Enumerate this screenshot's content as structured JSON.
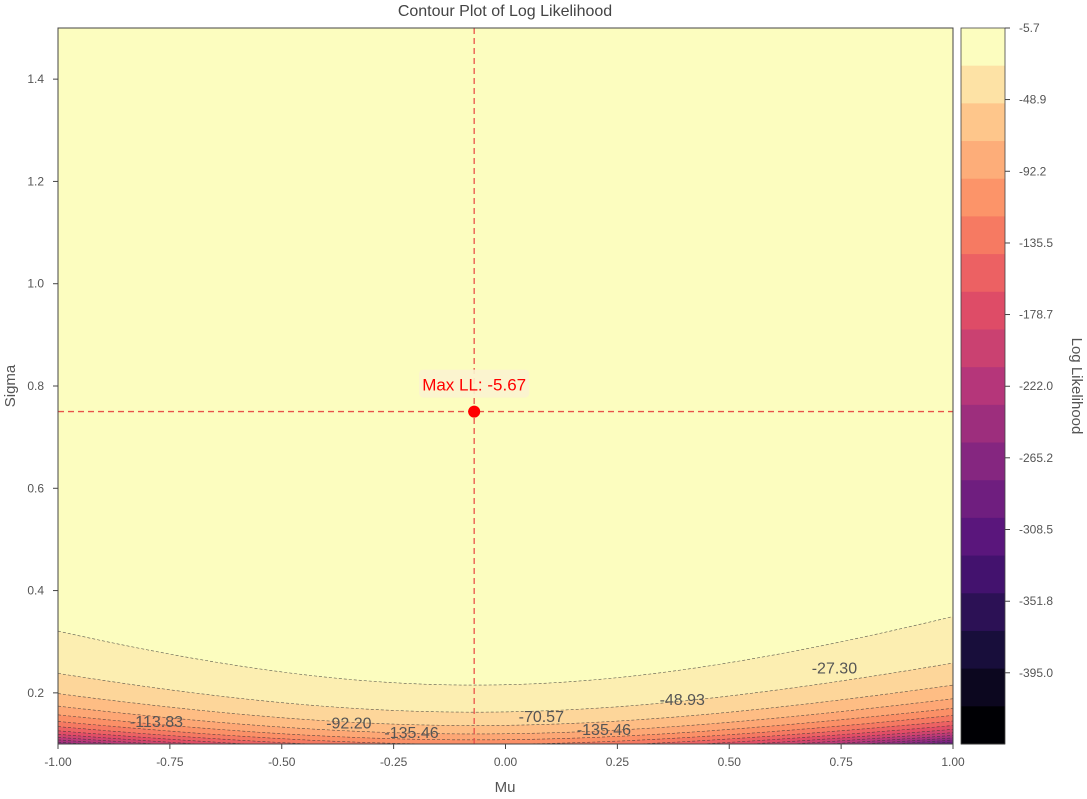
{
  "chart_data": {
    "type": "contour",
    "title": "Contour Plot of Log Likelihood",
    "xlabel": "Mu",
    "ylabel": "Sigma",
    "xlim": [
      -1.0,
      1.0
    ],
    "ylim": [
      0.1,
      1.5
    ],
    "x_ticks": [
      "-1.00",
      "-0.75",
      "-0.50",
      "-0.25",
      "0.00",
      "0.25",
      "0.50",
      "0.75",
      "1.00"
    ],
    "y_ticks": [
      "0.2",
      "0.4",
      "0.6",
      "0.8",
      "1.0",
      "1.2",
      "1.4"
    ],
    "colormap": "magma",
    "colorbar": {
      "label": "Log Likelihood",
      "range": [
        -438.0,
        -5.7
      ],
      "ticks": [
        "-5.7",
        "-48.9",
        "-92.2",
        "-135.5",
        "-178.7",
        "-222.0",
        "-265.2",
        "-308.5",
        "-351.8",
        "-395.0"
      ]
    },
    "contour_levels": [
      -5.67,
      -27.3,
      -48.93,
      -70.57,
      -92.2,
      -113.83,
      -135.46,
      -157.09,
      -178.72,
      -200.35,
      -221.98,
      -243.61,
      -265.24,
      -286.88,
      -308.51,
      -330.14,
      -351.77,
      -373.4,
      -395.03,
      -416.66,
      -438.29
    ],
    "contour_labels": [
      {
        "text": "-27.30",
        "x": 0.735,
        "y": 0.238
      },
      {
        "text": "-48.93",
        "x": 0.395,
        "y": 0.176
      },
      {
        "text": "-70.57",
        "x": 0.08,
        "y": 0.143
      },
      {
        "text": "-92.20",
        "x": -0.35,
        "y": 0.13
      },
      {
        "text": "-113.83",
        "x": -0.78,
        "y": 0.133
      },
      {
        "text": "-135.46",
        "x": -0.21,
        "y": 0.112
      },
      {
        "text": "-135.46",
        "x": 0.22,
        "y": 0.118
      }
    ],
    "max_point": {
      "mu": -0.07,
      "sigma": 0.75,
      "value": -5.67
    },
    "annotation": "Max LL: -5.67",
    "data_mean": -0.07,
    "grid": false
  }
}
